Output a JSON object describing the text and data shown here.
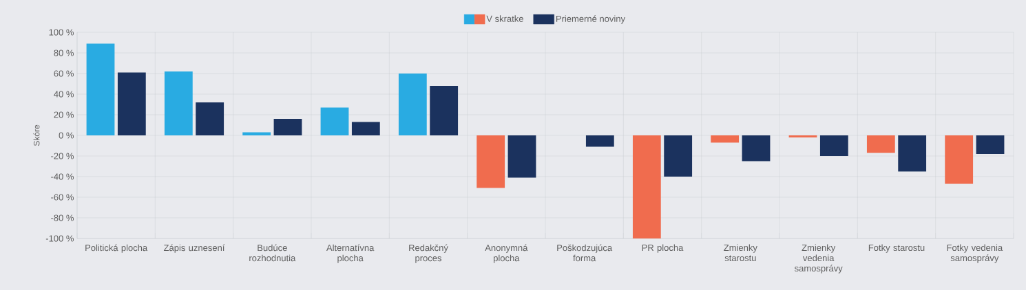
{
  "chart_data": {
    "type": "bar",
    "ylabel": "Skóre",
    "categories": [
      "Politická plocha",
      "Zápis uznesení",
      "Budúce rozhodnutia",
      "Alternatívna plocha",
      "Redakčný proces",
      "Anonymná plocha",
      "Poškodzujúca forma",
      "PR plocha",
      "Zmienky starostu",
      "Zmienky vedenia samosprávy",
      "Fotky starostu",
      "Fotky vedenia samosprávy"
    ],
    "series": [
      {
        "name": "V skratke",
        "values": [
          89,
          62,
          3,
          27,
          60,
          -51,
          null,
          -100,
          -7,
          -2,
          -17,
          -47
        ],
        "colors": [
          "#29abe2",
          "#29abe2",
          "#29abe2",
          "#29abe2",
          "#29abe2",
          "#f06c4e",
          "#f06c4e",
          "#f06c4e",
          "#f06c4e",
          "#f06c4e",
          "#f06c4e",
          "#f06c4e"
        ]
      },
      {
        "name": "Priemerné noviny",
        "values": [
          61,
          32,
          16,
          13,
          48,
          -41,
          -11,
          -40,
          -25,
          -20,
          -35,
          -18
        ],
        "color": "#1b325e"
      }
    ],
    "ylim": [
      -100,
      100
    ],
    "yticks": [
      {
        "value": -100,
        "label": "-100 %"
      },
      {
        "value": -80,
        "label": "-80 %"
      },
      {
        "value": -60,
        "label": "-60 %"
      },
      {
        "value": -40,
        "label": "-40 %"
      },
      {
        "value": -20,
        "label": "-20 %"
      },
      {
        "value": 0,
        "label": "0 %"
      },
      {
        "value": 20,
        "label": "20 %"
      },
      {
        "value": 40,
        "label": "40 %"
      },
      {
        "value": 60,
        "label": "60 %"
      },
      {
        "value": 80,
        "label": "80 %"
      },
      {
        "value": 100,
        "label": "100 %"
      }
    ],
    "grid": true,
    "legend": "top"
  }
}
